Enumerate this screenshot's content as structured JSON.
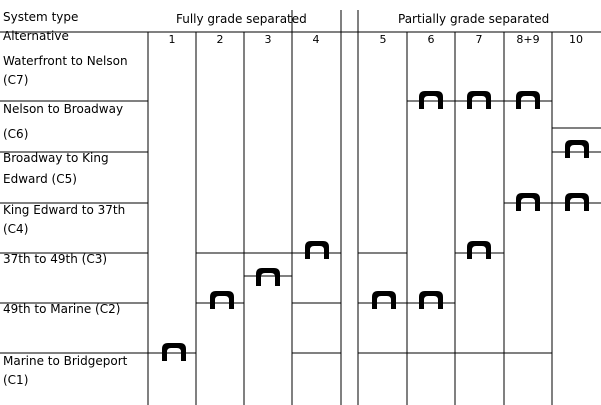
{
  "header": {
    "system_type_label": "System type",
    "alternative_label": "Alternative",
    "group_full": "Fully grade separated",
    "group_partial": "Partially grade separated"
  },
  "alternatives": [
    "1",
    "2",
    "3",
    "4",
    "5",
    "6",
    "7",
    "8+9",
    "10"
  ],
  "segments": [
    {
      "line1": "Waterfront to Nelson",
      "line2": "(C7)"
    },
    {
      "line1": "Nelson to Broadway",
      "line2": "(C6)"
    },
    {
      "line1": "Broadway to King",
      "line2": "Edward (C5)"
    },
    {
      "line1": "King Edward to 37th",
      "line2": "(C4)"
    },
    {
      "line1": "37th to 49th (C3)",
      "line2": ""
    },
    {
      "line1": "49th to Marine (C2)",
      "line2": ""
    },
    {
      "line1": "Marine to Bridgeport",
      "line2": "(C1)"
    }
  ],
  "portals": [
    {
      "alternative": "1",
      "segment_boundary": "C1 (start)"
    },
    {
      "alternative": "2",
      "segment_boundary": "C2/C3"
    },
    {
      "alternative": "3",
      "segment_boundary": "C3"
    },
    {
      "alternative": "4",
      "segment_boundary": "C3/C4"
    },
    {
      "alternative": "5",
      "segment_boundary": "C2/C3"
    },
    {
      "alternative": "6",
      "segment_boundary": "C2/C3"
    },
    {
      "alternative": "6",
      "segment_boundary": "C6/C7"
    },
    {
      "alternative": "7",
      "segment_boundary": "C3/C4"
    },
    {
      "alternative": "7",
      "segment_boundary": "C6/C7"
    },
    {
      "alternative": "8+9",
      "segment_boundary": "C4/C5"
    },
    {
      "alternative": "8+9",
      "segment_boundary": "C6/C7"
    },
    {
      "alternative": "10",
      "segment_boundary": "C4/C5"
    },
    {
      "alternative": "10",
      "segment_boundary": "C5/C6"
    }
  ]
}
